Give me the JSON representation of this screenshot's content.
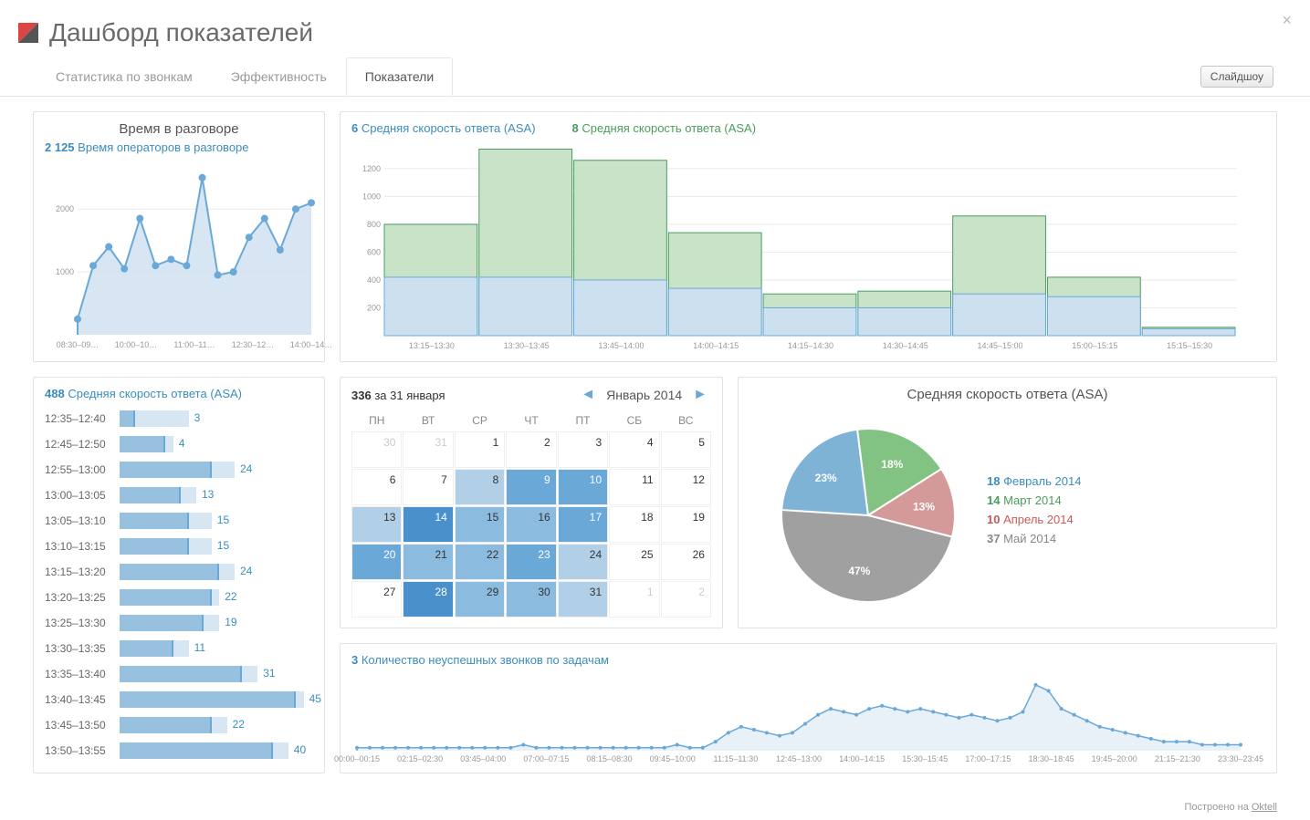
{
  "header": {
    "title": "Дашборд показателей"
  },
  "tabs": {
    "items": [
      "Статистика по звонкам",
      "Эффективность",
      "Показатели"
    ],
    "active": 2,
    "slideshow": "Слайдшоу"
  },
  "colors": {
    "blue": "#6aa8d8",
    "blue_fill": "#cde0ef",
    "blue_pale": "#d7e6f3",
    "green": "#a6cfa6",
    "green_border": "#4a9d5b",
    "red": "#d89a9a",
    "gray": "#999999",
    "grid": "#eaeaea",
    "pie_blue": "#7fb3d5",
    "pie_green": "#82c282",
    "pie_red": "#d49a9a",
    "pie_gray": "#a0a0a0"
  },
  "talk_time": {
    "title": "Время в разговоре",
    "legend_val": "2 125",
    "legend_text": "Время операторов в разговоре",
    "yticks": [
      1000,
      2000
    ],
    "xlabels": [
      "08:30–09…",
      "10:00–10…",
      "11:00–11…",
      "12:30–12…",
      "14:00–14…"
    ],
    "points": [
      250,
      1100,
      1400,
      1050,
      1850,
      1100,
      1200,
      1100,
      2500,
      950,
      1000,
      1550,
      1850,
      1350,
      2000,
      2100
    ],
    "ylim": [
      0,
      2700
    ],
    "line_color": "#6aa8d8",
    "fill_color": "#cde0ef",
    "marker_r": 4
  },
  "asa_bars": {
    "blue_val": "6",
    "blue_text": "Средняя скорость ответа (ASA)",
    "green_val": "8",
    "green_text": "Средняя скорость ответа (ASA)",
    "yticks": [
      200,
      400,
      600,
      800,
      1000,
      1200
    ],
    "ylim": [
      0,
      1350
    ],
    "xlabels": [
      "13:15–13:30",
      "13:30–13:45",
      "13:45–14:00",
      "14:00–14:15",
      "14:15–14:30",
      "14:30–14:45",
      "14:45–15:00",
      "15:00–15:15",
      "15:15–15:30"
    ],
    "green_vals": [
      800,
      1340,
      1260,
      740,
      300,
      320,
      860,
      420,
      60
    ],
    "blue_vals": [
      420,
      420,
      400,
      340,
      200,
      200,
      300,
      280,
      50
    ],
    "green_fill": "#c9e3c9",
    "green_border": "#4a9d5b",
    "blue_fill": "#cde0ef",
    "blue_border": "#6aa8d8"
  },
  "hbars": {
    "legend_val": "488",
    "legend_text": "Средняя скорость ответа (ASA)",
    "max": 50,
    "rows": [
      {
        "label": "12:35–12:40",
        "base": 18,
        "fill": 4,
        "val": 3
      },
      {
        "label": "12:45–12:50",
        "base": 14,
        "fill": 12,
        "val": 4
      },
      {
        "label": "12:55–13:00",
        "base": 30,
        "fill": 24,
        "val": 24
      },
      {
        "label": "13:00–13:05",
        "base": 20,
        "fill": 16,
        "val": 13
      },
      {
        "label": "13:05–13:10",
        "base": 24,
        "fill": 18,
        "val": 15
      },
      {
        "label": "13:10–13:15",
        "base": 24,
        "fill": 18,
        "val": 15
      },
      {
        "label": "13:15–13:20",
        "base": 30,
        "fill": 26,
        "val": 24
      },
      {
        "label": "13:20–13:25",
        "base": 26,
        "fill": 24,
        "val": 22
      },
      {
        "label": "13:25–13:30",
        "base": 26,
        "fill": 22,
        "val": 19
      },
      {
        "label": "13:30–13:35",
        "base": 18,
        "fill": 14,
        "val": 11
      },
      {
        "label": "13:35–13:40",
        "base": 36,
        "fill": 32,
        "val": 31
      },
      {
        "label": "13:40–13:45",
        "base": 48,
        "fill": 46,
        "val": 45
      },
      {
        "label": "13:45–13:50",
        "base": 28,
        "fill": 24,
        "val": 22
      },
      {
        "label": "13:50–13:55",
        "base": 44,
        "fill": 40,
        "val": 40
      }
    ]
  },
  "calendar": {
    "count": "336",
    "count_suffix": "за 31 января",
    "month": "Январь 2014",
    "dow": [
      "ПН",
      "ВТ",
      "СР",
      "ЧТ",
      "ПТ",
      "СБ",
      "ВС"
    ],
    "shade_scale": [
      "#ffffff",
      "#e8f1f8",
      "#cfe2f0",
      "#b1d0e8",
      "#8bbce0",
      "#6aa8d8",
      "#4a91cc"
    ],
    "cells": [
      {
        "n": 30,
        "out": true,
        "s": 0
      },
      {
        "n": 31,
        "out": true,
        "s": 0
      },
      {
        "n": 1,
        "s": 0
      },
      {
        "n": 2,
        "s": 0
      },
      {
        "n": 3,
        "s": 0
      },
      {
        "n": 4,
        "s": 0
      },
      {
        "n": 5,
        "s": 0
      },
      {
        "n": 6,
        "s": 0
      },
      {
        "n": 7,
        "s": 0
      },
      {
        "n": 8,
        "s": 3
      },
      {
        "n": 9,
        "s": 5
      },
      {
        "n": 10,
        "s": 5
      },
      {
        "n": 11,
        "s": 0
      },
      {
        "n": 12,
        "s": 0
      },
      {
        "n": 13,
        "s": 3
      },
      {
        "n": 14,
        "s": 6
      },
      {
        "n": 15,
        "s": 4
      },
      {
        "n": 16,
        "s": 4
      },
      {
        "n": 17,
        "s": 5
      },
      {
        "n": 18,
        "s": 0
      },
      {
        "n": 19,
        "s": 0
      },
      {
        "n": 20,
        "s": 5
      },
      {
        "n": 21,
        "s": 4
      },
      {
        "n": 22,
        "s": 4
      },
      {
        "n": 23,
        "s": 5
      },
      {
        "n": 24,
        "s": 3
      },
      {
        "n": 25,
        "s": 0
      },
      {
        "n": 26,
        "s": 0
      },
      {
        "n": 27,
        "s": 0
      },
      {
        "n": 28,
        "s": 6
      },
      {
        "n": 29,
        "s": 4
      },
      {
        "n": 30,
        "s": 4
      },
      {
        "n": 31,
        "s": 3
      },
      {
        "n": 1,
        "out": true,
        "s": 0
      },
      {
        "n": 2,
        "out": true,
        "s": 0
      }
    ]
  },
  "pie": {
    "title": "Средняя скорость ответа (ASA)",
    "slices": [
      {
        "pct": 23,
        "color": "#7fb3d5",
        "label": "Февраль 2014",
        "val": "18",
        "lcolor": "#3b8dbd"
      },
      {
        "pct": 18,
        "color": "#82c282",
        "label": "Март 2014",
        "val": "14",
        "lcolor": "#4a9d5b"
      },
      {
        "pct": 13,
        "color": "#d49a9a",
        "label": "Апрель 2014",
        "val": "10",
        "lcolor": "#c85a5a"
      },
      {
        "pct": 47,
        "color": "#a0a0a0",
        "label": "Май 2014",
        "val": "37",
        "lcolor": "#888888"
      }
    ],
    "label_fontsize": 12
  },
  "failed": {
    "legend_val": "3",
    "legend_text": "Количество неуспешных звонков по задачам",
    "xlabels": [
      "00:00–00:15",
      "02:15–02:30",
      "03:45–04:00",
      "07:00–07:15",
      "08:15–08:30",
      "09:45–10:00",
      "11:15–11:30",
      "12:45–13:00",
      "14:00–14:15",
      "15:30–15:45",
      "17:00–17:15",
      "18:30–18:45",
      "19:45–20:00",
      "21:15–21:30",
      "23:30–23:45"
    ],
    "points": [
      1,
      1,
      1,
      1,
      1,
      1,
      1,
      1,
      1,
      1,
      1,
      1,
      1,
      2,
      1,
      1,
      1,
      1,
      1,
      1,
      1,
      1,
      1,
      1,
      1,
      2,
      1,
      1,
      3,
      6,
      8,
      7,
      6,
      5,
      6,
      9,
      12,
      14,
      13,
      12,
      14,
      15,
      14,
      13,
      14,
      13,
      12,
      11,
      12,
      11,
      10,
      11,
      13,
      22,
      20,
      14,
      12,
      10,
      8,
      7,
      6,
      5,
      4,
      3,
      3,
      3,
      2,
      2,
      2,
      2
    ],
    "ylim": [
      0,
      25
    ],
    "line_color": "#6aa8d8",
    "fill_color": "#e8f1f8",
    "marker_r": 2
  },
  "footer": {
    "prefix": "Построено на ",
    "link": "Oktell"
  }
}
